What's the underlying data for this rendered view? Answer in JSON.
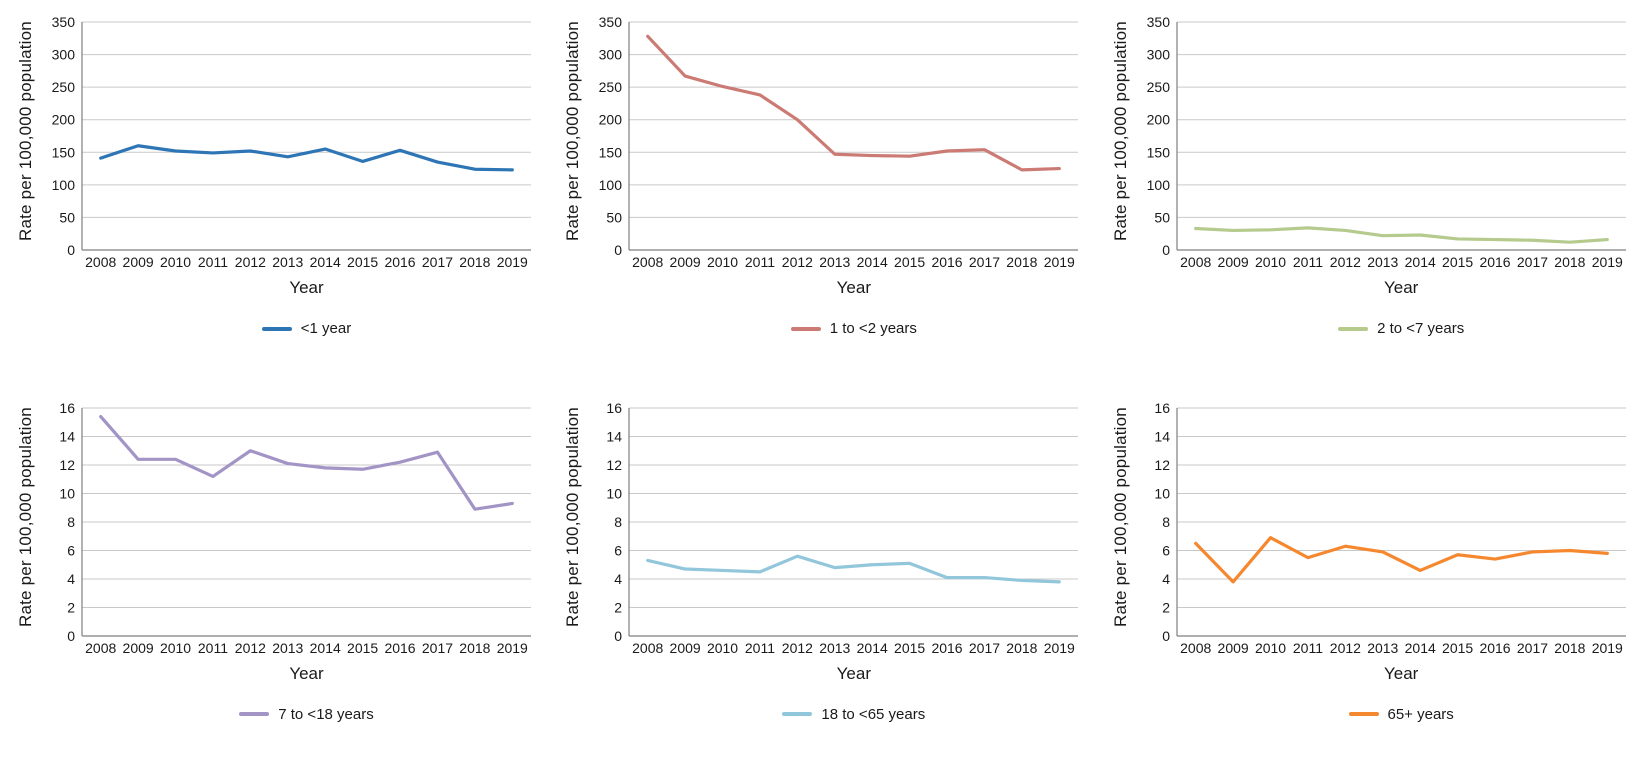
{
  "page": {
    "x_axis_title": "Year",
    "y_axis_title": "Rate per 100,000 population"
  },
  "chart_data": [
    {
      "type": "line",
      "name": "<1 year",
      "color": "#2e75b6",
      "xlabel": "Year",
      "ylabel": "Rate per 100,000 population",
      "x": [
        2008,
        2009,
        2010,
        2011,
        2012,
        2013,
        2014,
        2015,
        2016,
        2017,
        2018,
        2019
      ],
      "values": [
        141,
        160,
        152,
        149,
        152,
        143,
        155,
        136,
        153,
        135,
        124,
        123
      ],
      "ylim": [
        0,
        350
      ],
      "ystep": 50,
      "grid": true,
      "legend_position": "bottom"
    },
    {
      "type": "line",
      "name": "1 to <2 years",
      "color": "#cb7a74",
      "xlabel": "Year",
      "ylabel": "Rate per 100,000 population",
      "x": [
        2008,
        2009,
        2010,
        2011,
        2012,
        2013,
        2014,
        2015,
        2016,
        2017,
        2018,
        2019
      ],
      "values": [
        328,
        267,
        251,
        238,
        200,
        147,
        145,
        144,
        152,
        154,
        123,
        125
      ],
      "ylim": [
        0,
        350
      ],
      "ystep": 50,
      "grid": true,
      "legend_position": "bottom"
    },
    {
      "type": "line",
      "name": "2 to <7 years",
      "color": "#b5ca8d",
      "xlabel": "Year",
      "ylabel": "Rate per 100,000 population",
      "x": [
        2008,
        2009,
        2010,
        2011,
        2012,
        2013,
        2014,
        2015,
        2016,
        2017,
        2018,
        2019
      ],
      "values": [
        33,
        30,
        31,
        34,
        30,
        22,
        23,
        17,
        16,
        15,
        12,
        16
      ],
      "ylim": [
        0,
        350
      ],
      "ystep": 50,
      "grid": true,
      "legend_position": "bottom"
    },
    {
      "type": "line",
      "name": "7 to <18 years",
      "color": "#a294c5",
      "xlabel": "Year",
      "ylabel": "Rate per 100,000 population",
      "x": [
        2008,
        2009,
        2010,
        2011,
        2012,
        2013,
        2014,
        2015,
        2016,
        2017,
        2018,
        2019
      ],
      "values": [
        15.4,
        12.4,
        12.4,
        11.2,
        13.0,
        12.1,
        11.8,
        11.7,
        12.2,
        12.9,
        8.9,
        9.3
      ],
      "ylim": [
        0,
        16
      ],
      "ystep": 2,
      "grid": true,
      "legend_position": "bottom"
    },
    {
      "type": "line",
      "name": "18 to <65 years",
      "color": "#92c6da",
      "xlabel": "Year",
      "ylabel": "Rate per 100,000 population",
      "x": [
        2008,
        2009,
        2010,
        2011,
        2012,
        2013,
        2014,
        2015,
        2016,
        2017,
        2018,
        2019
      ],
      "values": [
        5.3,
        4.7,
        4.6,
        4.5,
        5.6,
        4.8,
        5.0,
        5.1,
        4.1,
        4.1,
        3.9,
        3.8
      ],
      "ylim": [
        0,
        16
      ],
      "ystep": 2,
      "grid": true,
      "legend_position": "bottom"
    },
    {
      "type": "line",
      "name": "65+ years",
      "color": "#f5882f",
      "xlabel": "Year",
      "ylabel": "Rate per 100,000 population",
      "x": [
        2008,
        2009,
        2010,
        2011,
        2012,
        2013,
        2014,
        2015,
        2016,
        2017,
        2018,
        2019
      ],
      "values": [
        6.5,
        3.8,
        6.9,
        5.5,
        6.3,
        5.9,
        4.6,
        5.7,
        5.4,
        5.9,
        6.0,
        5.8
      ],
      "ylim": [
        0,
        16
      ],
      "ystep": 2,
      "grid": true,
      "legend_position": "bottom"
    }
  ]
}
